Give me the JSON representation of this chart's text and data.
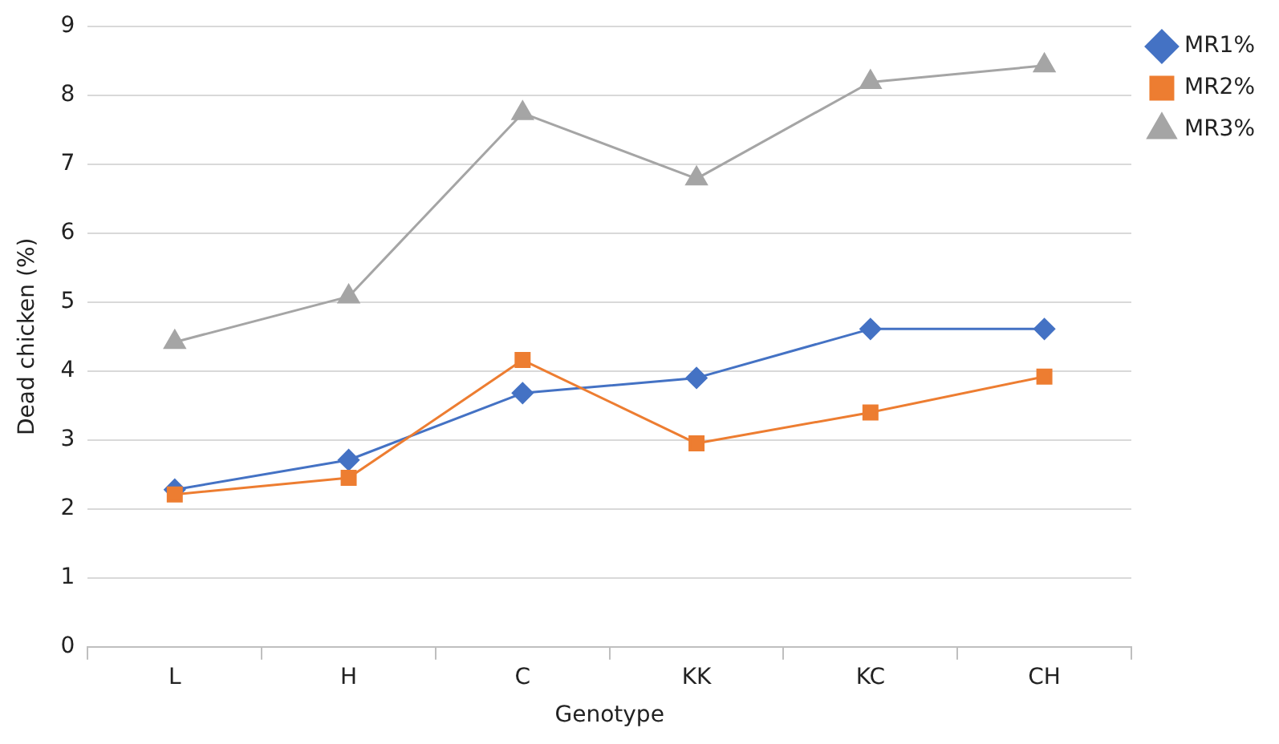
{
  "chart_data": {
    "type": "line",
    "xlabel": "Genotype",
    "ylabel": "Dead chicken (%)",
    "categories": [
      "L",
      "H",
      "C",
      "KK",
      "KC",
      "CH"
    ],
    "series": [
      {
        "name": "MR1%",
        "color": "#4472c4",
        "marker": "diamond",
        "values": [
          2.28,
          2.71,
          3.68,
          3.9,
          4.61,
          4.61
        ]
      },
      {
        "name": "MR2%",
        "color": "#ed7d31",
        "marker": "square",
        "values": [
          2.21,
          2.45,
          4.16,
          2.95,
          3.4,
          3.92
        ]
      },
      {
        "name": "MR3%",
        "color": "#a5a5a5",
        "marker": "triangle",
        "values": [
          4.42,
          5.08,
          7.74,
          6.79,
          8.19,
          8.43
        ]
      }
    ],
    "ylim": [
      0,
      9
    ],
    "yticks": [
      0,
      1,
      2,
      3,
      4,
      5,
      6,
      7,
      8,
      9
    ],
    "grid": "y",
    "legend": "right"
  }
}
